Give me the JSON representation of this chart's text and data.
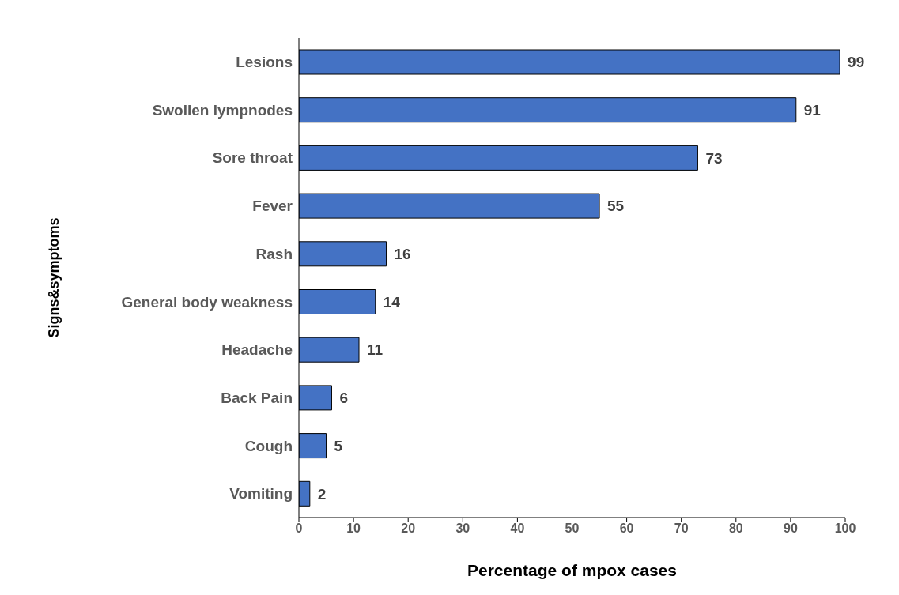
{
  "chart_data": {
    "type": "bar",
    "orientation": "horizontal",
    "xlabel": "Percentage of mpox cases",
    "ylabel": "Signs&symptoms",
    "categories": [
      "Lesions",
      "Swollen lympnodes",
      "Sore throat",
      "Fever",
      "Rash",
      "General body weakness",
      "Headache",
      "Back Pain",
      "Cough",
      "Vomiting"
    ],
    "values": [
      99,
      91,
      73,
      55,
      16,
      14,
      11,
      6,
      5,
      2
    ],
    "color": "#4472c4",
    "xlim": [
      0,
      100
    ],
    "xticks": [
      0,
      10,
      20,
      30,
      40,
      50,
      60,
      70,
      80,
      90,
      100
    ],
    "grid": false,
    "legend": false,
    "data_labels": true
  }
}
